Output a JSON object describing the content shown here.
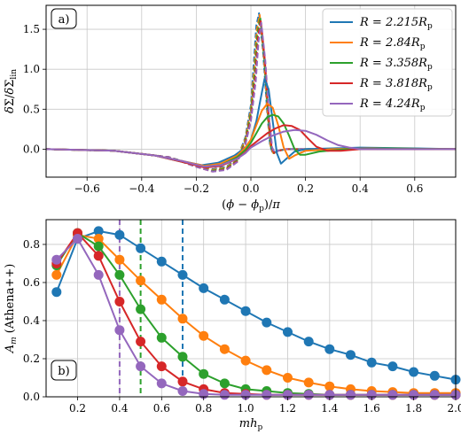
{
  "chart_data": [
    {
      "type": "line",
      "panel_label": "a)",
      "xlabel": "(ϕ − ϕp)/π",
      "ylabel": "δΣ/δΣlin",
      "xlim": [
        -0.75,
        0.75
      ],
      "ylim": [
        -0.35,
        1.8
      ],
      "xticks": [
        -0.6,
        -0.4,
        -0.2,
        0.0,
        0.2,
        0.4,
        0.6
      ],
      "xtick_labels": [
        "−0.6",
        "−0.4",
        "−0.2",
        "0.0",
        "0.2",
        "0.4",
        "0.6"
      ],
      "yticks": [
        0.0,
        0.5,
        1.0,
        1.5
      ],
      "ytick_labels": [
        "0.0",
        "0.5",
        "1.0",
        "1.5"
      ],
      "grid": true,
      "legend_position": "top-right",
      "line_styles": [
        "solid",
        "dashed"
      ],
      "series": [
        {
          "name": "R = 2.215Rp",
          "color": "#1f77b4",
          "solid": {
            "x": [
              -0.75,
              -0.5,
              -0.35,
              -0.25,
              -0.18,
              -0.12,
              -0.06,
              -0.02,
              0.0,
              0.02,
              0.035,
              0.05,
              0.065,
              0.08,
              0.095,
              0.11,
              0.13,
              0.16,
              0.2,
              0.3,
              0.4,
              0.6,
              0.75
            ],
            "y": [
              0.0,
              -0.02,
              -0.08,
              -0.15,
              -0.2,
              -0.17,
              -0.08,
              0.02,
              0.12,
              0.35,
              0.62,
              0.88,
              0.75,
              0.35,
              -0.05,
              -0.18,
              -0.12,
              -0.03,
              0.0,
              0.01,
              0.02,
              0.01,
              0.0
            ]
          },
          "dashed": {
            "x": [
              -0.75,
              -0.5,
              -0.3,
              -0.2,
              -0.14,
              -0.09,
              -0.05,
              -0.02,
              0.0,
              0.01,
              0.02,
              0.03,
              0.045,
              0.06,
              0.07,
              0.08,
              0.1,
              0.13,
              0.2,
              0.4,
              0.75
            ],
            "y": [
              0.0,
              -0.02,
              -0.1,
              -0.2,
              -0.25,
              -0.22,
              -0.12,
              0.15,
              0.55,
              1.05,
              1.55,
              1.7,
              1.2,
              0.45,
              0.05,
              -0.05,
              -0.02,
              0.0,
              0.0,
              0.0,
              0.0
            ]
          }
        },
        {
          "name": "R = 2.84Rp",
          "color": "#ff7f0e",
          "solid": {
            "x": [
              -0.75,
              -0.5,
              -0.35,
              -0.25,
              -0.17,
              -0.11,
              -0.05,
              -0.02,
              0.0,
              0.02,
              0.04,
              0.06,
              0.08,
              0.1,
              0.12,
              0.14,
              0.16,
              0.2,
              0.3,
              0.45,
              0.75
            ],
            "y": [
              0.0,
              -0.02,
              -0.08,
              -0.15,
              -0.21,
              -0.18,
              -0.08,
              0.02,
              0.12,
              0.3,
              0.48,
              0.57,
              0.52,
              0.3,
              0.02,
              -0.12,
              -0.08,
              -0.02,
              0.0,
              0.01,
              0.0
            ]
          },
          "dashed": {
            "x": [
              -0.75,
              -0.5,
              -0.3,
              -0.2,
              -0.14,
              -0.09,
              -0.05,
              -0.02,
              0.0,
              0.012,
              0.022,
              0.032,
              0.047,
              0.062,
              0.072,
              0.082,
              0.1,
              0.13,
              0.2,
              0.4,
              0.75
            ],
            "y": [
              0.0,
              -0.02,
              -0.1,
              -0.21,
              -0.26,
              -0.23,
              -0.13,
              0.13,
              0.5,
              1.0,
              1.5,
              1.68,
              1.18,
              0.42,
              0.04,
              -0.05,
              -0.02,
              0.0,
              0.0,
              0.0,
              0.0
            ]
          }
        },
        {
          "name": "R = 3.358Rp",
          "color": "#2ca02c",
          "solid": {
            "x": [
              -0.75,
              -0.5,
              -0.35,
              -0.25,
              -0.17,
              -0.11,
              -0.05,
              -0.02,
              0.0,
              0.02,
              0.04,
              0.06,
              0.08,
              0.1,
              0.12,
              0.14,
              0.16,
              0.18,
              0.2,
              0.25,
              0.35,
              0.5,
              0.75
            ],
            "y": [
              0.0,
              -0.02,
              -0.08,
              -0.16,
              -0.22,
              -0.2,
              -0.1,
              -0.01,
              0.08,
              0.2,
              0.32,
              0.4,
              0.43,
              0.41,
              0.32,
              0.17,
              0.0,
              -0.07,
              -0.07,
              -0.03,
              0.0,
              0.01,
              0.0
            ]
          },
          "dashed": {
            "x": [
              -0.75,
              -0.5,
              -0.3,
              -0.2,
              -0.14,
              -0.09,
              -0.05,
              -0.02,
              0.0,
              0.014,
              0.024,
              0.034,
              0.049,
              0.064,
              0.074,
              0.084,
              0.1,
              0.13,
              0.2,
              0.4,
              0.75
            ],
            "y": [
              0.0,
              -0.02,
              -0.1,
              -0.22,
              -0.27,
              -0.24,
              -0.14,
              0.1,
              0.45,
              0.95,
              1.45,
              1.65,
              1.15,
              0.4,
              0.03,
              -0.05,
              -0.02,
              0.0,
              0.0,
              0.0,
              0.0
            ]
          }
        },
        {
          "name": "R = 3.818Rp",
          "color": "#d62728",
          "solid": {
            "x": [
              -0.75,
              -0.5,
              -0.35,
              -0.25,
              -0.17,
              -0.11,
              -0.05,
              -0.02,
              0.0,
              0.03,
              0.06,
              0.09,
              0.12,
              0.15,
              0.18,
              0.21,
              0.24,
              0.28,
              0.33,
              0.4,
              0.5,
              0.75
            ],
            "y": [
              0.0,
              -0.02,
              -0.08,
              -0.16,
              -0.23,
              -0.21,
              -0.12,
              -0.04,
              0.04,
              0.12,
              0.2,
              0.26,
              0.3,
              0.29,
              0.24,
              0.13,
              0.03,
              -0.02,
              -0.02,
              0.0,
              0.0,
              0.0
            ]
          },
          "dashed": {
            "x": [
              -0.75,
              -0.5,
              -0.3,
              -0.2,
              -0.14,
              -0.09,
              -0.05,
              -0.02,
              0.0,
              0.016,
              0.026,
              0.036,
              0.051,
              0.066,
              0.076,
              0.086,
              0.1,
              0.13,
              0.2,
              0.4,
              0.75
            ],
            "y": [
              0.0,
              -0.02,
              -0.1,
              -0.22,
              -0.28,
              -0.25,
              -0.15,
              0.08,
              0.4,
              0.9,
              1.4,
              1.62,
              1.12,
              0.38,
              0.02,
              -0.05,
              -0.02,
              0.0,
              0.0,
              0.0,
              0.0
            ]
          }
        },
        {
          "name": "R = 4.24Rp",
          "color": "#9467bd",
          "solid": {
            "x": [
              -0.75,
              -0.5,
              -0.35,
              -0.25,
              -0.17,
              -0.11,
              -0.05,
              -0.02,
              0.0,
              0.04,
              0.08,
              0.12,
              0.16,
              0.2,
              0.24,
              0.28,
              0.32,
              0.36,
              0.4,
              0.5,
              0.75
            ],
            "y": [
              0.0,
              -0.02,
              -0.08,
              -0.15,
              -0.22,
              -0.2,
              -0.12,
              -0.05,
              0.02,
              0.1,
              0.17,
              0.22,
              0.24,
              0.23,
              0.18,
              0.11,
              0.05,
              0.02,
              0.0,
              0.0,
              0.0
            ]
          },
          "dashed": {
            "x": [
              -0.75,
              -0.5,
              -0.3,
              -0.2,
              -0.14,
              -0.09,
              -0.05,
              -0.02,
              0.0,
              0.018,
              0.028,
              0.038,
              0.053,
              0.068,
              0.078,
              0.088,
              0.1,
              0.13,
              0.2,
              0.4,
              0.75
            ],
            "y": [
              0.0,
              -0.02,
              -0.1,
              -0.22,
              -0.28,
              -0.26,
              -0.16,
              0.06,
              0.35,
              0.85,
              1.35,
              1.58,
              1.1,
              0.36,
              0.02,
              -0.05,
              -0.02,
              0.0,
              0.0,
              0.0,
              0.0
            ]
          }
        }
      ]
    },
    {
      "type": "line",
      "panel_label": "b)",
      "xlabel": "mhp",
      "ylabel": "Am (Athena++)",
      "xlim": [
        0.05,
        2.0
      ],
      "ylim": [
        0.0,
        0.93
      ],
      "xticks": [
        0.2,
        0.4,
        0.6,
        0.8,
        1.0,
        1.2,
        1.4,
        1.6,
        1.8,
        2.0
      ],
      "xtick_labels": [
        "0.2",
        "0.4",
        "0.6",
        "0.8",
        "1.0",
        "1.2",
        "1.4",
        "1.6",
        "1.8",
        "2.0"
      ],
      "yticks": [
        0.0,
        0.2,
        0.4,
        0.6,
        0.8
      ],
      "ytick_labels": [
        "0.0",
        "0.2",
        "0.4",
        "0.6",
        "0.8"
      ],
      "grid": true,
      "markers": true,
      "x": [
        0.1,
        0.2,
        0.3,
        0.4,
        0.5,
        0.6,
        0.7,
        0.8,
        0.9,
        1.0,
        1.1,
        1.2,
        1.3,
        1.4,
        1.5,
        1.6,
        1.7,
        1.8,
        1.9,
        2.0
      ],
      "series": [
        {
          "color": "#1f77b4",
          "values": [
            0.55,
            0.83,
            0.87,
            0.85,
            0.78,
            0.71,
            0.64,
            0.57,
            0.51,
            0.45,
            0.39,
            0.34,
            0.29,
            0.25,
            0.22,
            0.18,
            0.16,
            0.13,
            0.11,
            0.09
          ]
        },
        {
          "color": "#ff7f0e",
          "values": [
            0.64,
            0.85,
            0.83,
            0.72,
            0.61,
            0.51,
            0.41,
            0.32,
            0.25,
            0.19,
            0.14,
            0.1,
            0.075,
            0.055,
            0.04,
            0.03,
            0.025,
            0.02,
            0.02,
            0.02
          ]
        },
        {
          "color": "#2ca02c",
          "values": [
            0.69,
            0.86,
            0.79,
            0.64,
            0.46,
            0.31,
            0.21,
            0.12,
            0.07,
            0.04,
            0.03,
            0.02,
            0.015,
            0.01,
            0.01,
            0.01,
            0.01,
            0.01,
            0.01,
            0.01
          ]
        },
        {
          "color": "#d62728",
          "values": [
            0.7,
            0.86,
            0.74,
            0.5,
            0.29,
            0.16,
            0.08,
            0.04,
            0.02,
            0.015,
            0.01,
            0.01,
            0.01,
            0.01,
            0.01,
            0.01,
            0.01,
            0.01,
            0.01,
            0.01
          ]
        },
        {
          "color": "#9467bd",
          "values": [
            0.72,
            0.83,
            0.64,
            0.35,
            0.16,
            0.07,
            0.03,
            0.015,
            0.01,
            0.01,
            0.01,
            0.01,
            0.01,
            0.01,
            0.01,
            0.01,
            0.01,
            0.01,
            0.01,
            0.01
          ]
        }
      ],
      "vertical_lines": [
        {
          "x": 0.4,
          "color": "#9467bd",
          "style": "dashed"
        },
        {
          "x": 0.5,
          "color": "#2ca02c",
          "style": "dashed"
        },
        {
          "x": 0.7,
          "color": "#1f77b4",
          "style": "dashed"
        }
      ]
    }
  ]
}
